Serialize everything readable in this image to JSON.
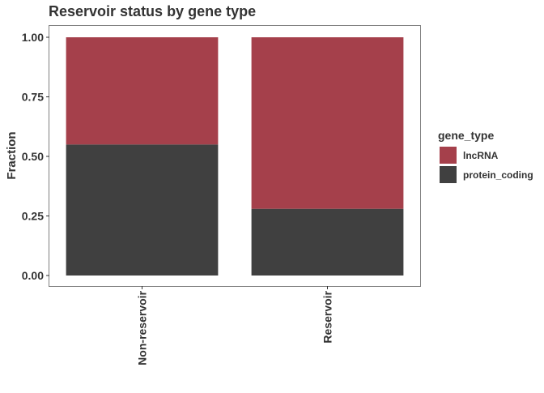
{
  "chart_data": {
    "type": "bar",
    "stacked": true,
    "title": "Reservoir status by gene type",
    "xlabel": "",
    "ylabel": "Fraction",
    "ylim": [
      0,
      1
    ],
    "yticks": [
      "0.00",
      "0.25",
      "0.50",
      "0.75",
      "1.00"
    ],
    "categories": [
      "Non-reservoir",
      "Reservoir"
    ],
    "series": [
      {
        "name": "protein_coding",
        "color": "#404040",
        "values": [
          0.55,
          0.28
        ]
      },
      {
        "name": "lncRNA",
        "color": "#a5404b",
        "values": [
          0.45,
          0.72
        ]
      }
    ],
    "legend": {
      "title": "gene_type",
      "position": "right",
      "entries": [
        "lncRNA",
        "protein_coding"
      ]
    },
    "grid": false
  }
}
